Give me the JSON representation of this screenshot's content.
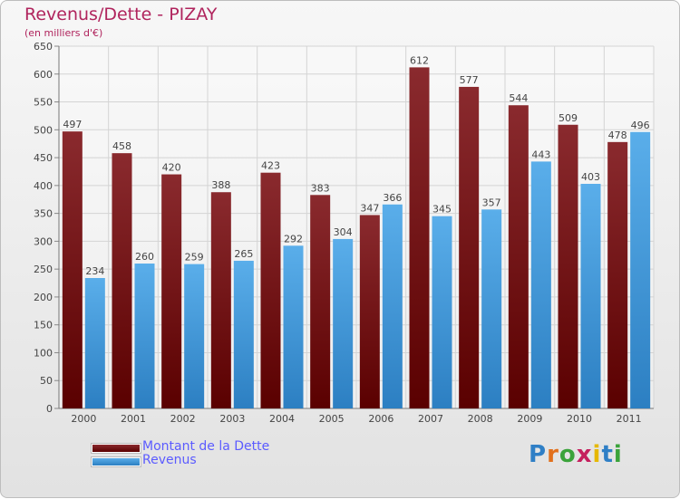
{
  "title": "Revenus/Dette - PIZAY",
  "subtitle": "(en milliers d'€)",
  "logo_text": "Proxiti",
  "colors": {
    "debt": "#7b1f22",
    "revenue": "#4ea2e3",
    "title": "#b0245d",
    "legend_text": "#5b5bff"
  },
  "chart_data": {
    "type": "bar",
    "categories": [
      "2000",
      "2001",
      "2002",
      "2003",
      "2004",
      "2005",
      "2006",
      "2007",
      "2008",
      "2009",
      "2010",
      "2011"
    ],
    "series": [
      {
        "name": "Montant de la Dette",
        "values": [
          497,
          458,
          420,
          388,
          423,
          383,
          347,
          612,
          577,
          544,
          509,
          478
        ]
      },
      {
        "name": "Revenus",
        "values": [
          234,
          260,
          259,
          265,
          292,
          304,
          366,
          345,
          357,
          443,
          403,
          496
        ]
      }
    ],
    "ylim": [
      0,
      650
    ],
    "ytick_step": 50,
    "grid": true,
    "legend_position": "bottom-left"
  }
}
